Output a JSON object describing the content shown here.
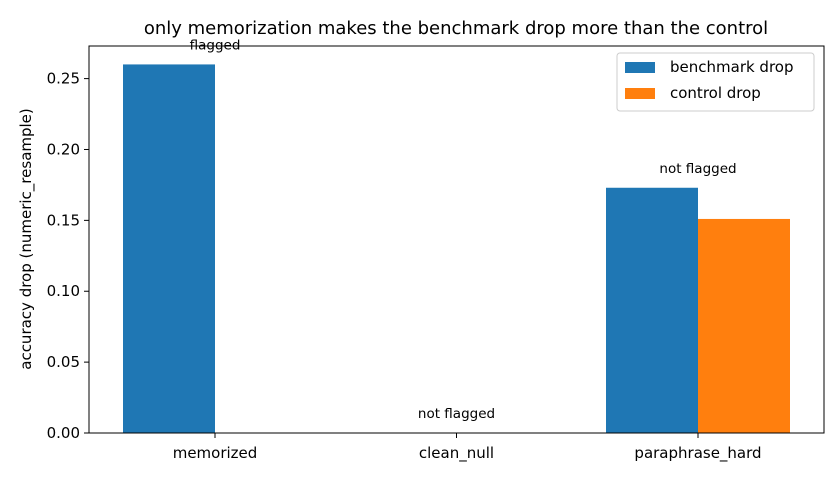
{
  "chart_data": {
    "type": "bar",
    "title": "only memorization makes the benchmark drop more than the control",
    "xlabel": "",
    "ylabel": "accuracy drop (numeric_resample)",
    "categories": [
      "memorized",
      "clean_null",
      "paraphrase_hard"
    ],
    "series": [
      {
        "name": "benchmark drop",
        "values": [
          0.26,
          0.0,
          0.173
        ],
        "color": "#1f77b4"
      },
      {
        "name": "control drop",
        "values": [
          0.0,
          0.0,
          0.151
        ],
        "color": "#ff7f0e"
      }
    ],
    "annotations": [
      "flagged",
      "not flagged",
      "not flagged"
    ],
    "ylim": [
      0,
      0.273
    ],
    "yticks": [
      0.0,
      0.05,
      0.1,
      0.15,
      0.2,
      0.25
    ],
    "ytick_labels": [
      "0.00",
      "0.05",
      "0.10",
      "0.15",
      "0.20",
      "0.25"
    ],
    "legend_position": "top-right",
    "grid": false
  }
}
